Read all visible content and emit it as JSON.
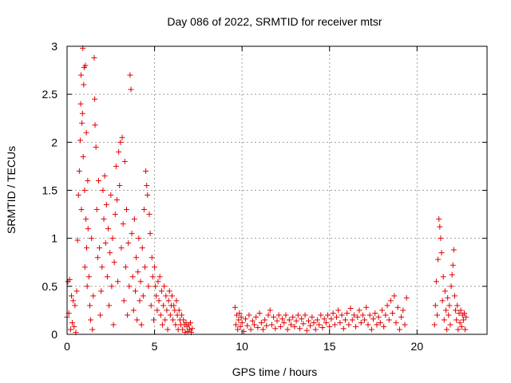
{
  "chart_data": {
    "type": "scatter",
    "title": "Day 086 of 2022, SRMTID for receiver mtsr",
    "xlabel": "GPS time / hours",
    "ylabel": "SRMTID / TECUs",
    "xlim": [
      0,
      24
    ],
    "ylim": [
      0,
      3
    ],
    "xticks": [
      "0",
      "5",
      "10",
      "15",
      "20"
    ],
    "yticks": [
      "0",
      "0.5",
      "1",
      "1.5",
      "2",
      "2.5",
      "3"
    ],
    "grid": true,
    "marker": "plus",
    "color": "#e00000",
    "points": [
      [
        0.0,
        0.18
      ],
      [
        0.05,
        0.55
      ],
      [
        0.1,
        0.22
      ],
      [
        0.15,
        0.57
      ],
      [
        0.2,
        0.05
      ],
      [
        0.25,
        0.4
      ],
      [
        0.3,
        0.12
      ],
      [
        0.35,
        0.35
      ],
      [
        0.4,
        0.08
      ],
      [
        0.45,
        0.3
      ],
      [
        0.5,
        0.02
      ],
      [
        0.55,
        0.45
      ],
      [
        0.6,
        0.98
      ],
      [
        0.65,
        1.45
      ],
      [
        0.7,
        1.7
      ],
      [
        0.75,
        2.02
      ],
      [
        0.78,
        2.4
      ],
      [
        0.8,
        2.7
      ],
      [
        0.82,
        1.3
      ],
      [
        0.85,
        2.2
      ],
      [
        0.88,
        2.3
      ],
      [
        0.9,
        2.98
      ],
      [
        0.92,
        1.85
      ],
      [
        0.95,
        2.6
      ],
      [
        0.98,
        2.78
      ],
      [
        1.0,
        1.5
      ],
      [
        1.02,
        0.7
      ],
      [
        1.05,
        2.8
      ],
      [
        1.08,
        1.2
      ],
      [
        1.1,
        2.1
      ],
      [
        1.12,
        0.9
      ],
      [
        1.15,
        0.5
      ],
      [
        1.18,
        1.6
      ],
      [
        1.2,
        1.1
      ],
      [
        1.25,
        0.6
      ],
      [
        1.3,
        0.3
      ],
      [
        1.35,
        0.15
      ],
      [
        1.4,
        1.0
      ],
      [
        1.45,
        0.05
      ],
      [
        1.5,
        0.4
      ],
      [
        1.55,
        2.88
      ],
      [
        1.58,
        2.45
      ],
      [
        1.6,
        2.18
      ],
      [
        1.65,
        1.95
      ],
      [
        1.7,
        1.3
      ],
      [
        1.75,
        0.8
      ],
      [
        1.8,
        1.6
      ],
      [
        1.85,
        0.9
      ],
      [
        1.9,
        0.2
      ],
      [
        1.95,
        0.45
      ],
      [
        2.0,
        0.7
      ],
      [
        2.05,
        1.5
      ],
      [
        2.1,
        1.2
      ],
      [
        2.15,
        1.65
      ],
      [
        2.2,
        0.95
      ],
      [
        2.25,
        1.35
      ],
      [
        2.3,
        0.6
      ],
      [
        2.35,
        1.1
      ],
      [
        2.4,
        0.3
      ],
      [
        2.45,
        0.85
      ],
      [
        2.5,
        1.45
      ],
      [
        2.55,
        0.5
      ],
      [
        2.6,
        1.0
      ],
      [
        2.65,
        0.1
      ],
      [
        2.7,
        0.75
      ],
      [
        2.75,
        1.25
      ],
      [
        2.8,
        1.75
      ],
      [
        2.85,
        1.4
      ],
      [
        2.9,
        0.55
      ],
      [
        2.95,
        1.9
      ],
      [
        3.0,
        1.55
      ],
      [
        3.05,
        2.0
      ],
      [
        3.1,
        0.9
      ],
      [
        3.15,
        2.05
      ],
      [
        3.2,
        1.15
      ],
      [
        3.25,
        0.35
      ],
      [
        3.3,
        1.8
      ],
      [
        3.35,
        0.7
      ],
      [
        3.4,
        1.3
      ],
      [
        3.45,
        0.2
      ],
      [
        3.5,
        0.95
      ],
      [
        3.55,
        0.5
      ],
      [
        3.6,
        2.7
      ],
      [
        3.65,
        2.55
      ],
      [
        3.7,
        1.05
      ],
      [
        3.75,
        0.6
      ],
      [
        3.8,
        0.25
      ],
      [
        3.85,
        1.2
      ],
      [
        3.9,
        0.45
      ],
      [
        3.95,
        0.8
      ],
      [
        4.0,
        0.15
      ],
      [
        4.05,
        0.65
      ],
      [
        4.1,
        1.0
      ],
      [
        4.15,
        0.35
      ],
      [
        4.2,
        0.55
      ],
      [
        4.25,
        0.1
      ],
      [
        4.3,
        0.9
      ],
      [
        4.35,
        0.4
      ],
      [
        4.4,
        1.3
      ],
      [
        4.45,
        0.7
      ],
      [
        4.5,
        1.7
      ],
      [
        4.55,
        1.55
      ],
      [
        4.6,
        1.45
      ],
      [
        4.65,
        0.5
      ],
      [
        4.7,
        1.25
      ],
      [
        4.75,
        1.05
      ],
      [
        4.8,
        0.3
      ],
      [
        4.85,
        0.8
      ],
      [
        4.9,
        0.6
      ],
      [
        4.95,
        0.15
      ],
      [
        5.0,
        0.7
      ],
      [
        5.05,
        0.5
      ],
      [
        5.1,
        0.4
      ],
      [
        5.15,
        0.25
      ],
      [
        5.2,
        0.55
      ],
      [
        5.25,
        0.35
      ],
      [
        5.3,
        0.6
      ],
      [
        5.35,
        0.2
      ],
      [
        5.4,
        0.45
      ],
      [
        5.45,
        0.1
      ],
      [
        5.5,
        0.3
      ],
      [
        5.55,
        0.5
      ],
      [
        5.6,
        0.15
      ],
      [
        5.65,
        0.4
      ],
      [
        5.7,
        0.25
      ],
      [
        5.75,
        0.05
      ],
      [
        5.8,
        0.35
      ],
      [
        5.85,
        0.45
      ],
      [
        5.9,
        0.2
      ],
      [
        5.95,
        0.3
      ],
      [
        6.0,
        0.4
      ],
      [
        6.05,
        0.15
      ],
      [
        6.1,
        0.3
      ],
      [
        6.15,
        0.25
      ],
      [
        6.2,
        0.1
      ],
      [
        6.25,
        0.35
      ],
      [
        6.3,
        0.2
      ],
      [
        6.35,
        0.05
      ],
      [
        6.4,
        0.25
      ],
      [
        6.45,
        0.15
      ],
      [
        6.5,
        0.1
      ],
      [
        6.55,
        0.2
      ],
      [
        6.6,
        0.05
      ],
      [
        6.65,
        0.15
      ],
      [
        6.7,
        0.1
      ],
      [
        6.75,
        0.02
      ],
      [
        6.8,
        0.12
      ],
      [
        6.85,
        0.08
      ],
      [
        6.9,
        0.03
      ],
      [
        6.95,
        0.1
      ],
      [
        7.0,
        0.05
      ],
      [
        7.05,
        0.12
      ],
      [
        7.1,
        0.02
      ],
      [
        7.15,
        0.06
      ],
      [
        9.6,
        0.28
      ],
      [
        9.65,
        0.1
      ],
      [
        9.7,
        0.2
      ],
      [
        9.75,
        0.05
      ],
      [
        9.8,
        0.15
      ],
      [
        9.85,
        0.22
      ],
      [
        9.9,
        0.08
      ],
      [
        9.95,
        0.18
      ],
      [
        10.0,
        0.12
      ],
      [
        10.1,
        0.03
      ],
      [
        10.2,
        0.16
      ],
      [
        10.3,
        0.09
      ],
      [
        10.4,
        0.2
      ],
      [
        10.5,
        0.05
      ],
      [
        10.6,
        0.14
      ],
      [
        10.7,
        0.1
      ],
      [
        10.8,
        0.18
      ],
      [
        10.9,
        0.07
      ],
      [
        11.0,
        0.22
      ],
      [
        11.1,
        0.12
      ],
      [
        11.2,
        0.05
      ],
      [
        11.3,
        0.15
      ],
      [
        11.4,
        0.09
      ],
      [
        11.5,
        0.2
      ],
      [
        11.6,
        0.25
      ],
      [
        11.7,
        0.1
      ],
      [
        11.8,
        0.18
      ],
      [
        11.9,
        0.06
      ],
      [
        12.0,
        0.14
      ],
      [
        12.1,
        0.2
      ],
      [
        12.2,
        0.08
      ],
      [
        12.3,
        0.16
      ],
      [
        12.4,
        0.12
      ],
      [
        12.5,
        0.2
      ],
      [
        12.6,
        0.05
      ],
      [
        12.7,
        0.15
      ],
      [
        12.8,
        0.1
      ],
      [
        12.9,
        0.18
      ],
      [
        13.0,
        0.08
      ],
      [
        13.1,
        0.14
      ],
      [
        13.2,
        0.2
      ],
      [
        13.3,
        0.06
      ],
      [
        13.4,
        0.16
      ],
      [
        13.5,
        0.11
      ],
      [
        13.6,
        0.2
      ],
      [
        13.7,
        0.04
      ],
      [
        13.8,
        0.14
      ],
      [
        13.9,
        0.09
      ],
      [
        14.0,
        0.18
      ],
      [
        14.1,
        0.12
      ],
      [
        14.2,
        0.05
      ],
      [
        14.3,
        0.15
      ],
      [
        14.4,
        0.1
      ],
      [
        14.5,
        0.2
      ],
      [
        14.6,
        0.07
      ],
      [
        14.7,
        0.16
      ],
      [
        14.8,
        0.12
      ],
      [
        14.9,
        0.2
      ],
      [
        15.0,
        0.08
      ],
      [
        15.1,
        0.16
      ],
      [
        15.2,
        0.22
      ],
      [
        15.3,
        0.1
      ],
      [
        15.4,
        0.18
      ],
      [
        15.5,
        0.25
      ],
      [
        15.6,
        0.12
      ],
      [
        15.7,
        0.2
      ],
      [
        15.8,
        0.06
      ],
      [
        15.9,
        0.15
      ],
      [
        16.0,
        0.22
      ],
      [
        16.1,
        0.1
      ],
      [
        16.2,
        0.27
      ],
      [
        16.3,
        0.15
      ],
      [
        16.4,
        0.2
      ],
      [
        16.5,
        0.08
      ],
      [
        16.6,
        0.18
      ],
      [
        16.7,
        0.25
      ],
      [
        16.8,
        0.12
      ],
      [
        16.9,
        0.2
      ],
      [
        17.0,
        0.15
      ],
      [
        17.1,
        0.28
      ],
      [
        17.2,
        0.1
      ],
      [
        17.3,
        0.2
      ],
      [
        17.4,
        0.05
      ],
      [
        17.5,
        0.16
      ],
      [
        17.6,
        0.22
      ],
      [
        17.7,
        0.1
      ],
      [
        17.8,
        0.18
      ],
      [
        17.9,
        0.12
      ],
      [
        18.0,
        0.25
      ],
      [
        18.1,
        0.08
      ],
      [
        18.2,
        0.2
      ],
      [
        18.3,
        0.3
      ],
      [
        18.4,
        0.15
      ],
      [
        18.5,
        0.35
      ],
      [
        18.6,
        0.22
      ],
      [
        18.7,
        0.4
      ],
      [
        18.8,
        0.12
      ],
      [
        18.9,
        0.28
      ],
      [
        19.0,
        0.05
      ],
      [
        19.1,
        0.18
      ],
      [
        19.2,
        0.25
      ],
      [
        19.3,
        0.1
      ],
      [
        19.4,
        0.38
      ],
      [
        21.0,
        0.1
      ],
      [
        21.05,
        0.3
      ],
      [
        21.1,
        0.55
      ],
      [
        21.15,
        0.2
      ],
      [
        21.2,
        0.78
      ],
      [
        21.25,
        1.2
      ],
      [
        21.3,
        1.12
      ],
      [
        21.35,
        1.0
      ],
      [
        21.4,
        0.85
      ],
      [
        21.45,
        0.35
      ],
      [
        21.5,
        0.6
      ],
      [
        21.55,
        0.15
      ],
      [
        21.6,
        0.45
      ],
      [
        21.65,
        0.25
      ],
      [
        21.7,
        0.05
      ],
      [
        21.75,
        0.38
      ],
      [
        21.8,
        0.2
      ],
      [
        21.85,
        0.3
      ],
      [
        21.9,
        0.1
      ],
      [
        21.95,
        0.5
      ],
      [
        22.0,
        0.62
      ],
      [
        22.05,
        0.72
      ],
      [
        22.1,
        0.88
      ],
      [
        22.15,
        0.4
      ],
      [
        22.2,
        0.25
      ],
      [
        22.25,
        0.15
      ],
      [
        22.3,
        0.3
      ],
      [
        22.35,
        0.05
      ],
      [
        22.4,
        0.22
      ],
      [
        22.45,
        0.12
      ],
      [
        22.5,
        0.25
      ],
      [
        22.55,
        0.08
      ],
      [
        22.6,
        0.2
      ],
      [
        22.65,
        0.15
      ],
      [
        22.7,
        0.22
      ],
      [
        22.75,
        0.05
      ],
      [
        22.8,
        0.18
      ]
    ]
  }
}
